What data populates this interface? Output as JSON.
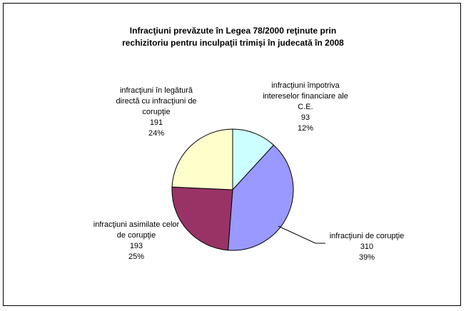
{
  "chart_data": {
    "type": "pie",
    "title_lines": [
      "Infracţiuni prevăzute în Legea 78/2000 reţinute prin",
      "rechizitoriu pentru inculpaţii trimişi în judecată în 2008"
    ],
    "slices": [
      {
        "label_lines": [
          "infracţiuni împotriva",
          "intereselor financiare ale",
          "C.E."
        ],
        "value": 93,
        "value_label": "93",
        "percent_label": "12%",
        "color": "#ccffff"
      },
      {
        "label_lines": [
          "infracţiuni de corupţie"
        ],
        "value": 310,
        "value_label": "310",
        "percent_label": "39%",
        "color": "#9999ff"
      },
      {
        "label_lines": [
          "infracţiuni asimilate celor",
          "de corupţie"
        ],
        "value": 193,
        "value_label": "193",
        "percent_label": "25%",
        "color": "#993366"
      },
      {
        "label_lines": [
          "infracţiuni în legătură",
          "directă cu infracţiuni de",
          "corupţie"
        ],
        "value": 191,
        "value_label": "191",
        "percent_label": "24%",
        "color": "#ffffcc"
      }
    ]
  }
}
